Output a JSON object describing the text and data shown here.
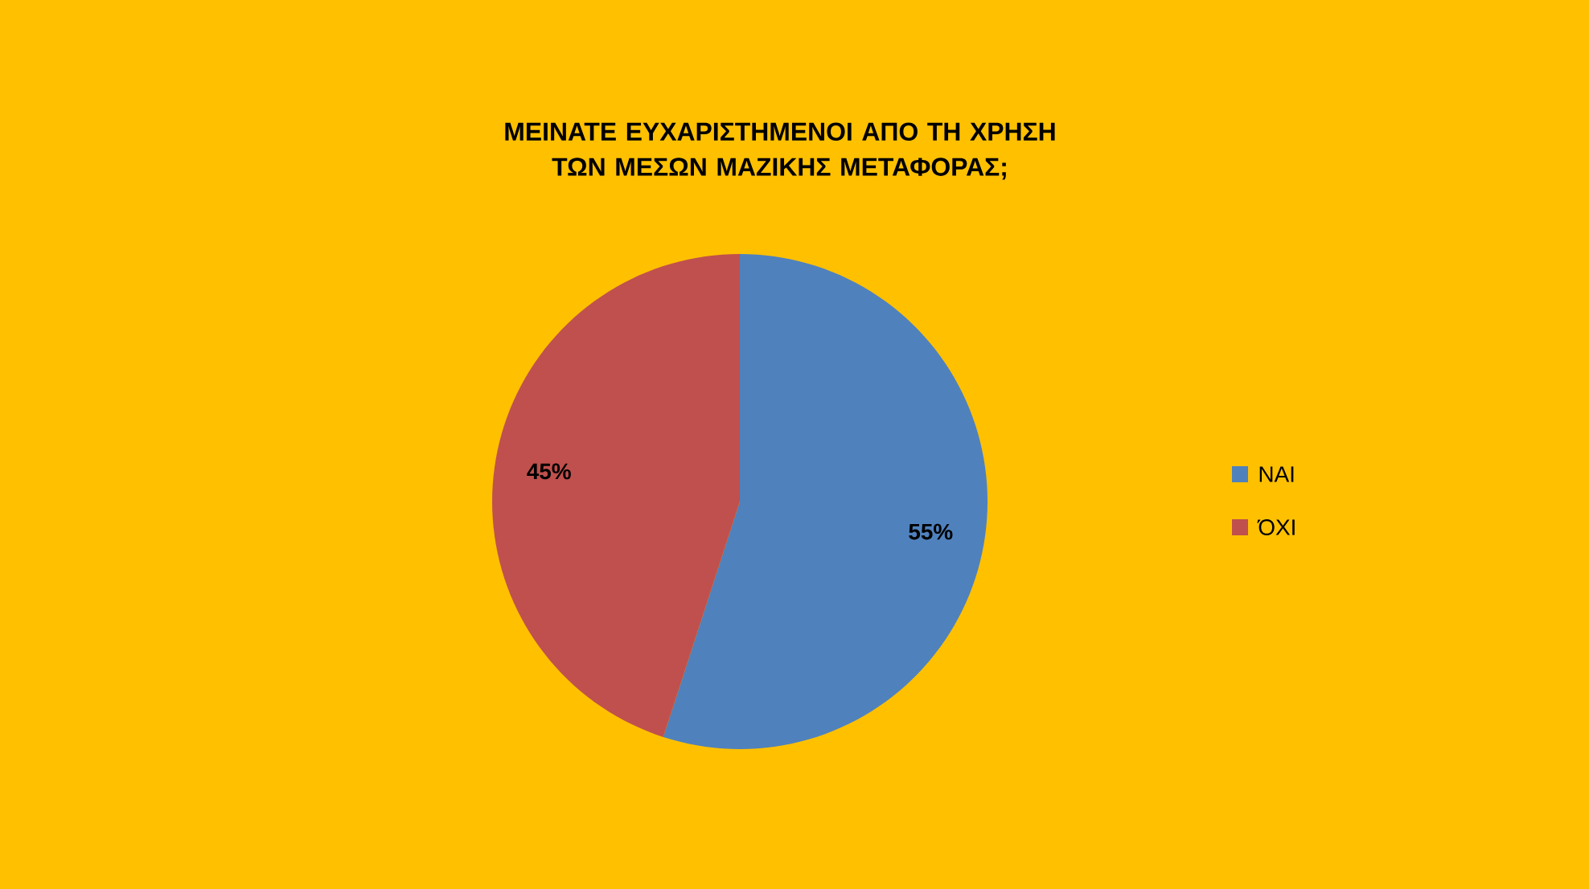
{
  "chart_data": {
    "type": "pie",
    "title": "ΜΕΙΝΑΤΕ ΕΥΧΑΡΙΣΤΗΜΕΝΟΙ ΑΠΟ ΤΗ ΧΡΗΣΗ\nΤΩΝ ΜΕΣΩΝ ΜΑΖΙΚΗΣ ΜΕΤΑΦΟΡΑΣ;",
    "categories": [
      "ΝΑΙ",
      "ΌΧΙ"
    ],
    "values": [
      55,
      45
    ],
    "value_labels": [
      "55%",
      "45%"
    ],
    "colors": [
      "#4f81bd",
      "#c0504d"
    ],
    "legend": "right"
  }
}
